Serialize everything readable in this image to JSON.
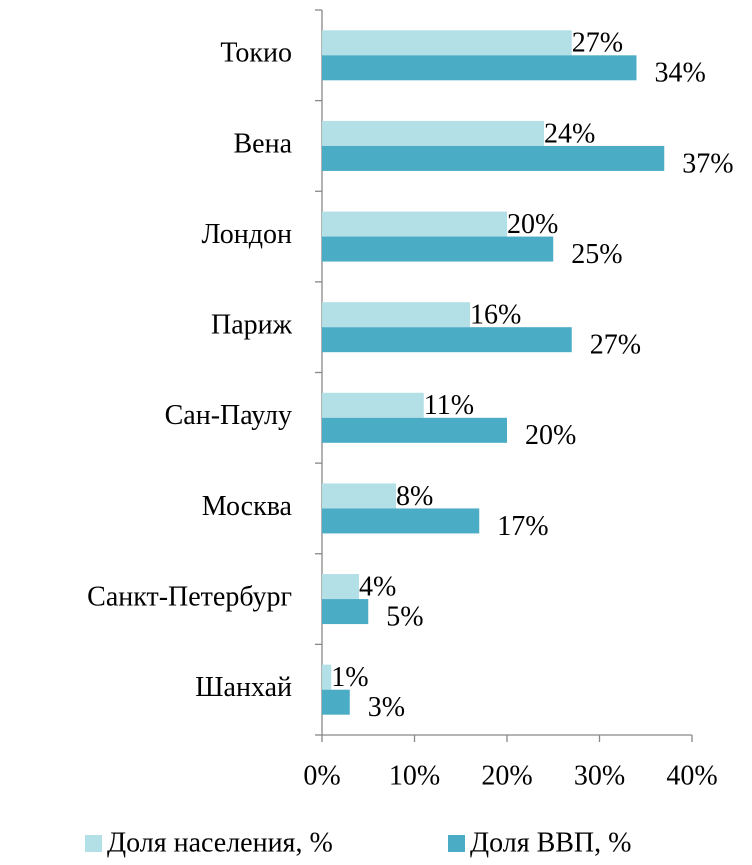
{
  "chart_data": {
    "type": "bar",
    "orientation": "horizontal",
    "categories": [
      "Токио",
      "Вена",
      "Лондон",
      "Париж",
      "Сан-Паулу",
      "Москва",
      "Санкт-Петербург",
      "Шанхай"
    ],
    "series": [
      {
        "name": "Доля населения, %",
        "color": "#b3dfe6",
        "values": [
          27,
          24,
          20,
          16,
          11,
          8,
          4,
          1
        ],
        "value_labels": [
          "27%",
          "24%",
          "20%",
          "16%",
          "11%",
          "8%",
          "4%",
          "1%"
        ]
      },
      {
        "name": "Доля ВВП, %",
        "color": "#4bacc6",
        "values": [
          34,
          37,
          25,
          27,
          20,
          17,
          5,
          3
        ],
        "value_labels": [
          "34%",
          "37%",
          "25%",
          "27%",
          "20%",
          "17%",
          "5%",
          "3%"
        ]
      }
    ],
    "xlim": [
      0,
      40
    ],
    "xticks": [
      {
        "value": 0,
        "label": "0%"
      },
      {
        "value": 10,
        "label": "10%"
      },
      {
        "value": 20,
        "label": "20%"
      },
      {
        "value": 30,
        "label": "30%"
      },
      {
        "value": 40,
        "label": "40%"
      }
    ],
    "legend": "bottom"
  }
}
